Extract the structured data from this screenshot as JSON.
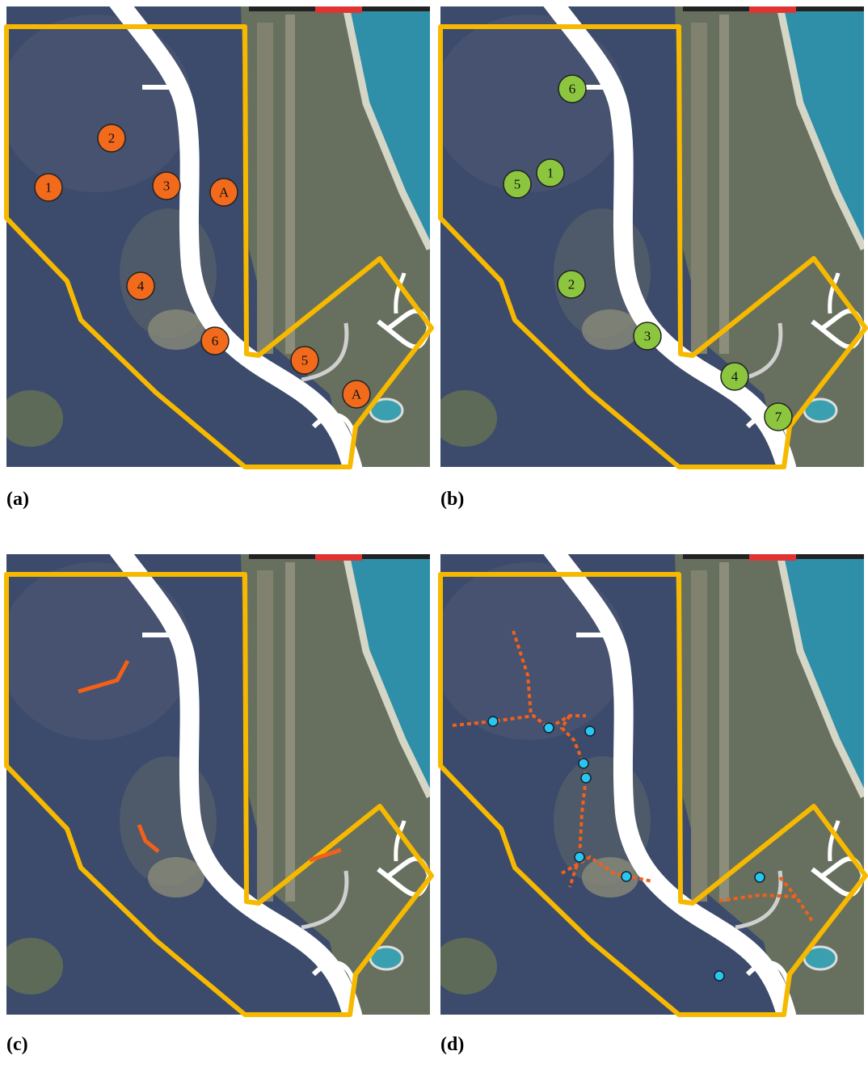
{
  "panels": [
    {
      "label": "(a)",
      "markers": [
        "1",
        "2",
        "3",
        "A",
        "4",
        "6",
        "5",
        "A"
      ]
    },
    {
      "label": "(b)",
      "markers": [
        "6",
        "1",
        "5",
        "2",
        "3",
        "4",
        "7"
      ]
    },
    {
      "label": "(c)"
    },
    {
      "label": "(d)"
    }
  ]
}
